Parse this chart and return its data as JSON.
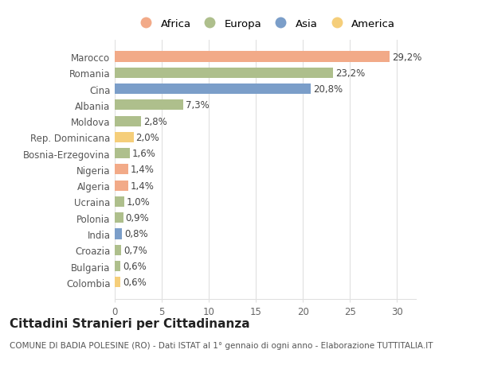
{
  "categories": [
    "Colombia",
    "Bulgaria",
    "Croazia",
    "India",
    "Polonia",
    "Ucraina",
    "Algeria",
    "Nigeria",
    "Bosnia-Erzegovina",
    "Rep. Dominicana",
    "Moldova",
    "Albania",
    "Cina",
    "Romania",
    "Marocco"
  ],
  "values": [
    0.6,
    0.6,
    0.7,
    0.8,
    0.9,
    1.0,
    1.4,
    1.4,
    1.6,
    2.0,
    2.8,
    7.3,
    20.8,
    23.2,
    29.2
  ],
  "labels": [
    "0,6%",
    "0,6%",
    "0,7%",
    "0,8%",
    "0,9%",
    "1,0%",
    "1,4%",
    "1,4%",
    "1,6%",
    "2,0%",
    "2,8%",
    "7,3%",
    "20,8%",
    "23,2%",
    "29,2%"
  ],
  "continents": [
    "America",
    "Europa",
    "Europa",
    "Asia",
    "Europa",
    "Europa",
    "Africa",
    "Africa",
    "Europa",
    "America",
    "Europa",
    "Europa",
    "Asia",
    "Europa",
    "Africa"
  ],
  "continent_colors": {
    "Africa": "#F2AA88",
    "Europa": "#AEBF8C",
    "Asia": "#7B9EC9",
    "America": "#F5CE7A"
  },
  "legend_order": [
    "Africa",
    "Europa",
    "Asia",
    "America"
  ],
  "bar_height": 0.65,
  "xlim": [
    0,
    32
  ],
  "xticks": [
    0,
    5,
    10,
    15,
    20,
    25,
    30
  ],
  "title": "Cittadini Stranieri per Cittadinanza",
  "subtitle": "COMUNE DI BADIA POLESINE (RO) - Dati ISTAT al 1° gennaio di ogni anno - Elaborazione TUTTITALIA.IT",
  "background_color": "#ffffff",
  "grid_color": "#e0e0e0",
  "title_fontsize": 11,
  "subtitle_fontsize": 7.5,
  "tick_fontsize": 8.5,
  "label_fontsize": 8.5,
  "legend_fontsize": 9.5
}
